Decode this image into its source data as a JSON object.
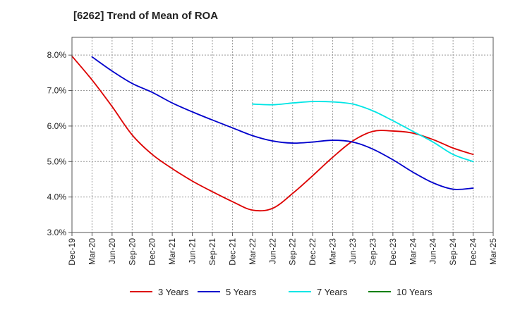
{
  "chart_data": {
    "type": "line",
    "title": "[6262]  Trend of Mean of ROA",
    "xlabel": "",
    "ylabel": "",
    "ylim": [
      3.0,
      8.5
    ],
    "yticks": [
      "3.0%",
      "4.0%",
      "5.0%",
      "6.0%",
      "7.0%",
      "8.0%"
    ],
    "ytick_values": [
      3.0,
      4.0,
      5.0,
      6.0,
      7.0,
      8.0
    ],
    "categories": [
      "Dec-19",
      "Mar-20",
      "Jun-20",
      "Sep-20",
      "Dec-20",
      "Mar-21",
      "Jun-21",
      "Sep-21",
      "Dec-21",
      "Mar-22",
      "Jun-22",
      "Sep-22",
      "Dec-22",
      "Mar-23",
      "Jun-23",
      "Sep-23",
      "Dec-23",
      "Mar-24",
      "Jun-24",
      "Sep-24",
      "Dec-24",
      "Mar-25"
    ],
    "grid": true,
    "legend_position": "bottom",
    "series": [
      {
        "name": "3 Years",
        "color": "#dd0000",
        "values": [
          7.97,
          7.3,
          6.55,
          5.75,
          5.2,
          4.8,
          4.45,
          4.15,
          3.87,
          3.63,
          3.68,
          4.1,
          4.6,
          5.12,
          5.58,
          5.85,
          5.86,
          5.8,
          5.62,
          5.38,
          5.2,
          null
        ]
      },
      {
        "name": "5 Years",
        "color": "#0000cc",
        "values": [
          null,
          7.95,
          7.55,
          7.2,
          6.95,
          6.65,
          6.4,
          6.17,
          5.95,
          5.73,
          5.58,
          5.52,
          5.55,
          5.6,
          5.55,
          5.35,
          5.05,
          4.7,
          4.4,
          4.22,
          4.25,
          null
        ]
      },
      {
        "name": "7 Years",
        "color": "#00e5e5",
        "values": [
          null,
          null,
          null,
          null,
          null,
          null,
          null,
          null,
          null,
          6.62,
          6.6,
          6.65,
          6.69,
          6.68,
          6.62,
          6.43,
          6.15,
          5.85,
          5.55,
          5.2,
          5.0,
          null
        ]
      },
      {
        "name": "10 Years",
        "color": "#008000",
        "values": [
          null,
          null,
          null,
          null,
          null,
          null,
          null,
          null,
          null,
          null,
          null,
          null,
          null,
          null,
          null,
          null,
          null,
          null,
          null,
          null,
          null,
          null
        ]
      }
    ]
  }
}
